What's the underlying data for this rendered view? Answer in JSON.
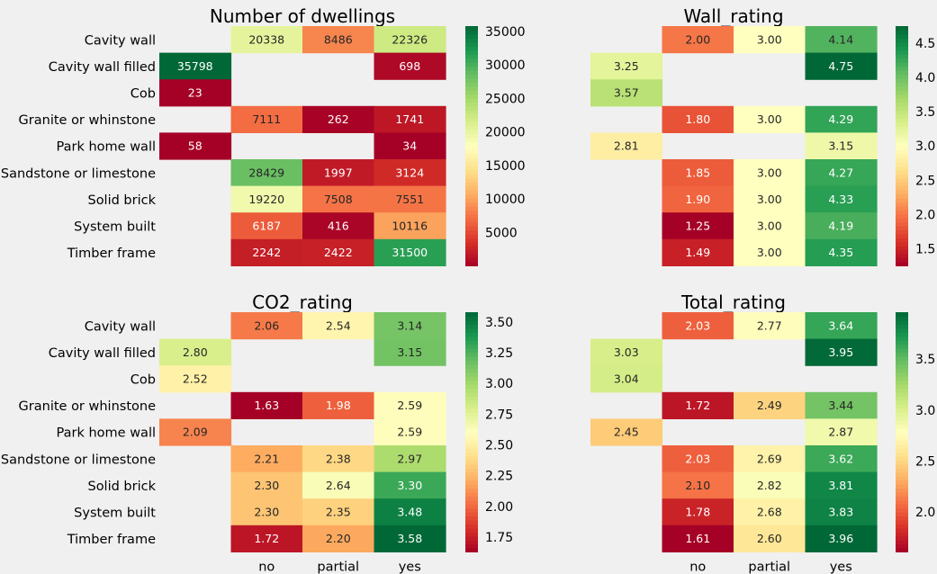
{
  "figure": {
    "background": "#f0f0f0",
    "missing_cell_color": "#f0f0f0"
  },
  "chart_data": [
    {
      "type": "heatmap",
      "title": "Number of dwellings",
      "rows": [
        "Cavity wall",
        "Cavity wall filled",
        "Cob",
        "Granite or whinstone",
        "Park home wall",
        "Sandstone or limestone",
        "Solid brick",
        "System built",
        "Timber frame"
      ],
      "columns": [
        "",
        "no",
        "partial",
        "yes"
      ],
      "values": [
        [
          null,
          20338,
          8486,
          22326
        ],
        [
          35798,
          null,
          null,
          698
        ],
        [
          23,
          null,
          null,
          null
        ],
        [
          null,
          7111,
          262,
          1741
        ],
        [
          58,
          null,
          null,
          34
        ],
        [
          null,
          28429,
          1997,
          3124
        ],
        [
          null,
          19220,
          7508,
          7551
        ],
        [
          null,
          6187,
          416,
          10116
        ],
        [
          null,
          2242,
          2422,
          31500
        ]
      ],
      "labels": [
        [
          "",
          "20338",
          "8486",
          "22326"
        ],
        [
          "35798",
          "",
          "",
          "698"
        ],
        [
          "23",
          "",
          "",
          ""
        ],
        [
          "",
          "7111",
          "262",
          "1741"
        ],
        [
          "58",
          "",
          "",
          "34"
        ],
        [
          "",
          "28429",
          "1997",
          "3124"
        ],
        [
          "",
          "19220",
          "7508",
          "7551"
        ],
        [
          "",
          "6187",
          "416",
          "10116"
        ],
        [
          "",
          "2242",
          "2422",
          "31500"
        ]
      ],
      "colorscale": "RdYlGn",
      "vmin": 23,
      "vmax": 35798,
      "colorbar_ticks": [
        5000,
        10000,
        15000,
        20000,
        25000,
        30000,
        35000
      ],
      "colorbar_tick_labels": [
        "5000",
        "10000",
        "15000",
        "20000",
        "25000",
        "30000",
        "35000"
      ],
      "show_row_labels": true,
      "show_col_labels": false
    },
    {
      "type": "heatmap",
      "title": "Wall_rating",
      "rows": [
        "Cavity wall",
        "Cavity wall filled",
        "Cob",
        "Granite or whinstone",
        "Park home wall",
        "Sandstone or limestone",
        "Solid brick",
        "System built",
        "Timber frame"
      ],
      "columns": [
        "",
        "no",
        "partial",
        "yes"
      ],
      "values": [
        [
          null,
          2.0,
          3.0,
          4.14
        ],
        [
          3.25,
          null,
          null,
          4.75
        ],
        [
          3.57,
          null,
          null,
          null
        ],
        [
          null,
          1.8,
          3.0,
          4.29
        ],
        [
          2.81,
          null,
          null,
          3.15
        ],
        [
          null,
          1.85,
          3.0,
          4.27
        ],
        [
          null,
          1.9,
          3.0,
          4.33
        ],
        [
          null,
          1.25,
          3.0,
          4.19
        ],
        [
          null,
          1.49,
          3.0,
          4.35
        ]
      ],
      "labels": [
        [
          "",
          "2.00",
          "3.00",
          "4.14"
        ],
        [
          "3.25",
          "",
          "",
          "4.75"
        ],
        [
          "3.57",
          "",
          "",
          ""
        ],
        [
          "",
          "1.80",
          "3.00",
          "4.29"
        ],
        [
          "2.81",
          "",
          "",
          "3.15"
        ],
        [
          "",
          "1.85",
          "3.00",
          "4.27"
        ],
        [
          "",
          "1.90",
          "3.00",
          "4.33"
        ],
        [
          "",
          "1.25",
          "3.00",
          "4.19"
        ],
        [
          "",
          "1.49",
          "3.00",
          "4.35"
        ]
      ],
      "colorscale": "RdYlGn",
      "vmin": 1.25,
      "vmax": 4.75,
      "colorbar_ticks": [
        1.5,
        2.0,
        2.5,
        3.0,
        3.5,
        4.0,
        4.5
      ],
      "colorbar_tick_labels": [
        "1.5",
        "2.0",
        "2.5",
        "3.0",
        "3.5",
        "4.0",
        "4.5"
      ],
      "show_row_labels": false,
      "show_col_labels": false
    },
    {
      "type": "heatmap",
      "title": "CO2_rating",
      "rows": [
        "Cavity wall",
        "Cavity wall filled",
        "Cob",
        "Granite or whinstone",
        "Park home wall",
        "Sandstone or limestone",
        "Solid brick",
        "System built",
        "Timber frame"
      ],
      "columns": [
        "",
        "no",
        "partial",
        "yes"
      ],
      "values": [
        [
          null,
          2.06,
          2.54,
          3.14
        ],
        [
          2.8,
          null,
          null,
          3.15
        ],
        [
          2.52,
          null,
          null,
          null
        ],
        [
          null,
          1.63,
          1.98,
          2.59
        ],
        [
          2.09,
          null,
          null,
          2.59
        ],
        [
          null,
          2.21,
          2.38,
          2.97
        ],
        [
          null,
          2.3,
          2.64,
          3.3
        ],
        [
          null,
          2.3,
          2.35,
          3.48
        ],
        [
          null,
          1.72,
          2.2,
          3.58
        ]
      ],
      "labels": [
        [
          "",
          "2.06",
          "2.54",
          "3.14"
        ],
        [
          "2.80",
          "",
          "",
          "3.15"
        ],
        [
          "2.52",
          "",
          "",
          ""
        ],
        [
          "",
          "1.63",
          "1.98",
          "2.59"
        ],
        [
          "2.09",
          "",
          "",
          "2.59"
        ],
        [
          "",
          "2.21",
          "2.38",
          "2.97"
        ],
        [
          "",
          "2.30",
          "2.64",
          "3.30"
        ],
        [
          "",
          "2.30",
          "2.35",
          "3.48"
        ],
        [
          "",
          "1.72",
          "2.20",
          "3.58"
        ]
      ],
      "colorscale": "RdYlGn",
      "vmin": 1.63,
      "vmax": 3.58,
      "colorbar_ticks": [
        1.75,
        2.0,
        2.25,
        2.5,
        2.75,
        3.0,
        3.25,
        3.5
      ],
      "colorbar_tick_labels": [
        "1.75",
        "2.00",
        "2.25",
        "2.50",
        "2.75",
        "3.00",
        "3.25",
        "3.50"
      ],
      "show_row_labels": true,
      "show_col_labels": true
    },
    {
      "type": "heatmap",
      "title": "Total_rating",
      "rows": [
        "Cavity wall",
        "Cavity wall filled",
        "Cob",
        "Granite or whinstone",
        "Park home wall",
        "Sandstone or limestone",
        "Solid brick",
        "System built",
        "Timber frame"
      ],
      "columns": [
        "",
        "no",
        "partial",
        "yes"
      ],
      "values": [
        [
          null,
          2.03,
          2.77,
          3.64
        ],
        [
          3.03,
          null,
          null,
          3.95
        ],
        [
          3.04,
          null,
          null,
          null
        ],
        [
          null,
          1.72,
          2.49,
          3.44
        ],
        [
          2.45,
          null,
          null,
          2.87
        ],
        [
          null,
          2.03,
          2.69,
          3.62
        ],
        [
          null,
          2.1,
          2.82,
          3.81
        ],
        [
          null,
          1.78,
          2.68,
          3.83
        ],
        [
          null,
          1.61,
          2.6,
          3.96
        ]
      ],
      "labels": [
        [
          "",
          "2.03",
          "2.77",
          "3.64"
        ],
        [
          "3.03",
          "",
          "",
          "3.95"
        ],
        [
          "3.04",
          "",
          "",
          ""
        ],
        [
          "",
          "1.72",
          "2.49",
          "3.44"
        ],
        [
          "2.45",
          "",
          "",
          "2.87"
        ],
        [
          "",
          "2.03",
          "2.69",
          "3.62"
        ],
        [
          "",
          "2.10",
          "2.82",
          "3.81"
        ],
        [
          "",
          "1.78",
          "2.68",
          "3.83"
        ],
        [
          "",
          "1.61",
          "2.60",
          "3.96"
        ]
      ],
      "colorscale": "RdYlGn",
      "vmin": 1.61,
      "vmax": 3.96,
      "colorbar_ticks": [
        2.0,
        2.5,
        3.0,
        3.5
      ],
      "colorbar_tick_labels": [
        "2.0",
        "2.5",
        "3.0",
        "3.5"
      ],
      "show_row_labels": false,
      "show_col_labels": true
    }
  ]
}
